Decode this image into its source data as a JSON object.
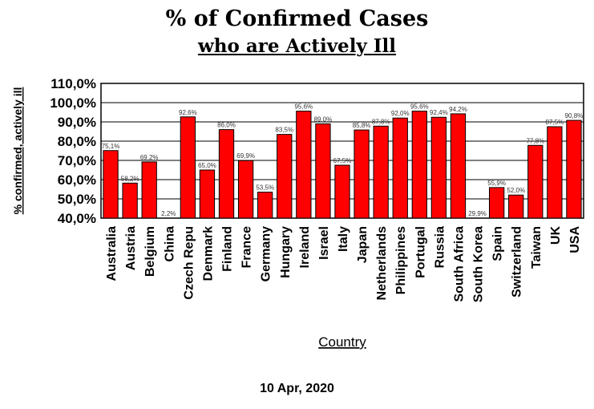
{
  "chart_data": {
    "type": "bar",
    "title": "% of Confirmed Cases",
    "subtitle": "who are Actively Ill",
    "xlabel": "Country",
    "ylabel": "% confirmed, actively ill",
    "footer": "10 Apr, 2020",
    "ylim": [
      40,
      110
    ],
    "yticks": [
      "40,0%",
      "50,0%",
      "60,0%",
      "70,0%",
      "80,0%",
      "90,0%",
      "100,0%",
      "110,0%"
    ],
    "bar_color": "#ff0000",
    "categories": [
      "Australia",
      "Austria",
      "Belgium",
      "China",
      "Czech Repu",
      "Denmark",
      "Finland",
      "France",
      "Germany",
      "Hungary",
      "Ireland",
      "Israel",
      "Italy",
      "Japan",
      "Netherlands",
      "Philippines",
      "Portugal",
      "Russia",
      "South Africa",
      "South Korea",
      "Spain",
      "Switzerland",
      "Taiwan",
      "UK",
      "USA"
    ],
    "values": [
      75.1,
      58.2,
      69.2,
      2.2,
      92.6,
      65.0,
      86.0,
      69.9,
      53.5,
      83.5,
      95.6,
      89.0,
      67.5,
      85.8,
      87.8,
      92.0,
      95.6,
      92.4,
      94.2,
      29.9,
      55.9,
      52.0,
      77.8,
      87.5,
      90.8
    ],
    "value_labels": [
      "75,1%",
      "58,2%",
      "69,2%",
      "2,2%",
      "92,6%",
      "65,0%",
      "86,0%",
      "69,9%",
      "53,5%",
      "83,5%",
      "95,6%",
      "89,0%",
      "67,5%",
      "85,8%",
      "87,8%",
      "92,0%",
      "95,6%",
      "92,4%",
      "94,2%",
      "29,9%",
      "55,9%",
      "52,0%",
      "77,8%",
      "87,5%",
      "90,8%"
    ],
    "grid": true,
    "legend": "none"
  }
}
